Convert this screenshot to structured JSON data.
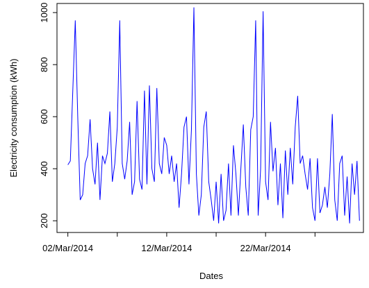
{
  "chart_data": {
    "type": "line",
    "x_label": "Dates",
    "y_label": "Electricity consumption (kWh)",
    "x": [
      2,
      2.25,
      2.5,
      2.75,
      3,
      3.25,
      3.5,
      3.75,
      4,
      4.25,
      4.5,
      4.75,
      5,
      5.25,
      5.5,
      5.75,
      6,
      6.25,
      6.5,
      6.75,
      7,
      7.25,
      7.5,
      7.75,
      8,
      8.25,
      8.5,
      8.75,
      9,
      9.25,
      9.5,
      9.75,
      10,
      10.25,
      10.5,
      10.75,
      11,
      11.25,
      11.5,
      11.75,
      12,
      12.25,
      12.5,
      12.75,
      13,
      13.25,
      13.5,
      13.75,
      14,
      14.25,
      14.5,
      14.75,
      15,
      15.25,
      15.5,
      15.75,
      16,
      16.25,
      16.5,
      16.75,
      17,
      17.25,
      17.5,
      17.75,
      18,
      18.25,
      18.5,
      18.75,
      19,
      19.25,
      19.5,
      19.75,
      20,
      20.25,
      20.5,
      20.75,
      21,
      21.25,
      21.5,
      21.75,
      22,
      22.25,
      22.5,
      22.75,
      23,
      23.25,
      23.5,
      23.75,
      24,
      24.25,
      24.5,
      24.75,
      25,
      25.25,
      25.5,
      25.75,
      26,
      26.25,
      26.5,
      26.75,
      27,
      27.25,
      27.5,
      27.75,
      28,
      28.25,
      28.5,
      28.75,
      29,
      29.25,
      29.5,
      29.75,
      30,
      30.25,
      30.5,
      30.75,
      31,
      31.25,
      31.5
    ],
    "series": [
      {
        "color": "#0000ff",
        "values": [
          415,
          430,
          700,
          970,
          600,
          280,
          300,
          420,
          450,
          590,
          400,
          340,
          500,
          280,
          450,
          420,
          460,
          620,
          350,
          420,
          560,
          970,
          420,
          360,
          430,
          580,
          300,
          350,
          660,
          360,
          320,
          700,
          340,
          720,
          400,
          350,
          710,
          420,
          380,
          520,
          490,
          380,
          450,
          350,
          420,
          250,
          380,
          560,
          600,
          340,
          550,
          1020,
          380,
          220,
          300,
          560,
          620,
          350,
          280,
          200,
          350,
          190,
          380,
          200,
          240,
          420,
          220,
          490,
          380,
          220,
          400,
          570,
          330,
          220,
          550,
          600,
          970,
          220,
          400,
          1005,
          350,
          280,
          580,
          390,
          480,
          260,
          420,
          210,
          470,
          300,
          480,
          340,
          560,
          680,
          420,
          450,
          380,
          320,
          440,
          250,
          200,
          440,
          230,
          260,
          330,
          250,
          380,
          610,
          280,
          200,
          420,
          450,
          220,
          370,
          190,
          420,
          300,
          430,
          200
        ]
      }
    ],
    "xlim": [
      0.9,
      31.9
    ],
    "xticks": [
      {
        "value": 2,
        "label": "02/Mar/2014"
      },
      {
        "value": 7,
        "label": null
      },
      {
        "value": 12,
        "label": "12/Mar/2014"
      },
      {
        "value": 17,
        "label": null
      },
      {
        "value": 22,
        "label": "22/Mar/2014"
      },
      {
        "value": 27,
        "label": null
      }
    ],
    "ylim": [
      155,
      1035
    ],
    "yticks": [
      200,
      400,
      600,
      800,
      1000
    ]
  }
}
